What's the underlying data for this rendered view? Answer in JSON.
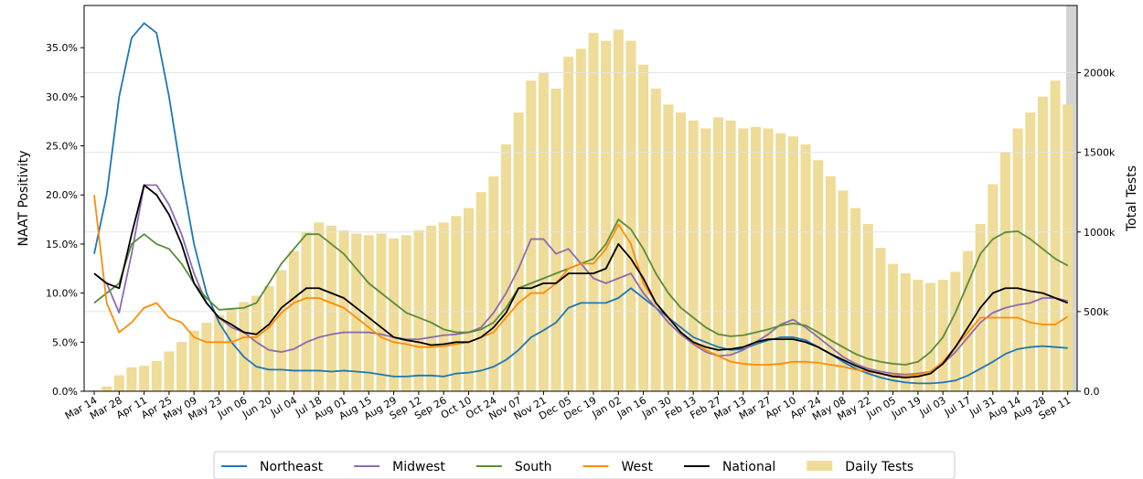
{
  "chart_data": {
    "type": "line",
    "categories": [
      "Mar 14",
      null,
      "Mar 28",
      null,
      "Apr 11",
      null,
      "Apr 25",
      null,
      "May 09",
      null,
      "May 23",
      null,
      "Jun 06",
      null,
      "Jun 20",
      null,
      "Jul 04",
      null,
      "Jul 18",
      null,
      "Aug 01",
      null,
      "Aug 15",
      null,
      "Aug 29",
      null,
      "Sep 12",
      null,
      "Sep 26",
      null,
      "Oct 10",
      null,
      "Oct 24",
      null,
      "Nov 07",
      null,
      "Nov 21",
      null,
      "Dec 05",
      null,
      "Dec 19",
      null,
      "Jan 02",
      null,
      "Jan 16",
      null,
      "Jan 30",
      null,
      "Feb 13",
      null,
      "Feb 27",
      null,
      "Mar 13",
      null,
      "Mar 27",
      null,
      "Apr 10",
      null,
      "Apr 24",
      null,
      "May 08",
      null,
      "May 22",
      null,
      "Jun 05",
      null,
      "Jun 19",
      null,
      "Jul 03",
      null,
      "Jul 17",
      null,
      "Jul 31",
      null,
      "Aug 14",
      null,
      "Aug 28",
      null,
      "Sep 11"
    ],
    "ylabel": "NAAT Positivity",
    "y2label": "Total Tests",
    "ylim": [
      0,
      39.3
    ],
    "yticks": [
      {
        "value": 0,
        "label": "0.0%"
      },
      {
        "value": 5,
        "label": "5.0%"
      },
      {
        "value": 10,
        "label": "10.0%"
      },
      {
        "value": 15,
        "label": "15.0%"
      },
      {
        "value": 20,
        "label": "20.0%"
      },
      {
        "value": 25,
        "label": "25.0%"
      },
      {
        "value": 30,
        "label": "30.0%"
      },
      {
        "value": 35,
        "label": "35.0%"
      }
    ],
    "y2lim": [
      0,
      2422000
    ],
    "y2ticks": [
      {
        "value": 0,
        "label": "0.0"
      },
      {
        "value": 500000,
        "label": "500k"
      },
      {
        "value": 1000000,
        "label": "1000k"
      },
      {
        "value": 1500000,
        "label": "1500k"
      },
      {
        "value": 2000000,
        "label": "2000k"
      }
    ],
    "grid": "y2",
    "legend": "bottom",
    "series": [
      {
        "name": "Daily Tests",
        "type": "bar",
        "axis": "y2",
        "color": "#eedc98",
        "values": [
          5000,
          30000,
          100000,
          150000,
          160000,
          190000,
          250000,
          310000,
          380000,
          430000,
          480000,
          520000,
          560000,
          600000,
          660000,
          760000,
          880000,
          1000000,
          1060000,
          1040000,
          1010000,
          990000,
          980000,
          990000,
          960000,
          980000,
          1010000,
          1040000,
          1060000,
          1100000,
          1150000,
          1250000,
          1350000,
          1550000,
          1750000,
          1950000,
          2000000,
          1900000,
          2100000,
          2150000,
          2250000,
          2200000,
          2270000,
          2200000,
          2050000,
          1900000,
          1800000,
          1750000,
          1700000,
          1650000,
          1720000,
          1700000,
          1650000,
          1660000,
          1650000,
          1620000,
          1600000,
          1550000,
          1450000,
          1350000,
          1260000,
          1150000,
          1050000,
          900000,
          800000,
          740000,
          700000,
          680000,
          700000,
          750000,
          880000,
          1050000,
          1300000,
          1500000,
          1650000,
          1750000,
          1850000,
          1950000,
          1800000
        ]
      },
      {
        "name": "Northeast",
        "type": "line",
        "color": "#1f77b4",
        "values": [
          14,
          20,
          30,
          36,
          37.5,
          36.5,
          30,
          22,
          15,
          10,
          7,
          5,
          3.5,
          2.5,
          2.2,
          2.2,
          2.1,
          2.1,
          2.1,
          2.0,
          2.1,
          2.0,
          1.9,
          1.7,
          1.5,
          1.5,
          1.6,
          1.6,
          1.5,
          1.8,
          1.9,
          2.1,
          2.5,
          3.2,
          4.2,
          5.5,
          6.2,
          7,
          8.5,
          9,
          9,
          9,
          9.5,
          10.5,
          9.5,
          8.5,
          7.5,
          6.5,
          5.5,
          5,
          4.5,
          4.2,
          4.3,
          4.8,
          5.2,
          5.5,
          5.5,
          5.2,
          4.5,
          3.8,
          3,
          2.3,
          1.8,
          1.4,
          1.1,
          0.9,
          0.8,
          0.8,
          0.9,
          1.1,
          1.6,
          2.3,
          3,
          3.8,
          4.3,
          4.5,
          4.6,
          4.5,
          4.4
        ]
      },
      {
        "name": "Midwest",
        "type": "line",
        "color": "#8e6bb0",
        "values": [
          12,
          11,
          8,
          14,
          21,
          21,
          19,
          16,
          12,
          9,
          7.5,
          6.5,
          6,
          5,
          4.2,
          4,
          4.3,
          5,
          5.5,
          5.8,
          6,
          6,
          6,
          5.8,
          5.5,
          5.3,
          5.3,
          5.5,
          5.7,
          5.8,
          6,
          6.5,
          8,
          10,
          12.5,
          15.5,
          15.5,
          14,
          14.5,
          13,
          11.5,
          11,
          11.5,
          12,
          10,
          8.5,
          7,
          5.8,
          4.8,
          4,
          3.6,
          3.7,
          4.2,
          5,
          5.8,
          6.8,
          7.3,
          6.5,
          5.5,
          4.5,
          3.5,
          2.8,
          2.3,
          2,
          1.8,
          1.7,
          1.8,
          2,
          2.8,
          4,
          5.5,
          7,
          8,
          8.5,
          8.8,
          9,
          9.5,
          9.5,
          9.2
        ]
      },
      {
        "name": "South",
        "type": "line",
        "color": "#5b8c3a",
        "values": [
          9,
          10,
          11,
          15,
          16,
          15,
          14.5,
          13,
          11,
          9.5,
          8.3,
          8.4,
          8.5,
          9,
          11,
          13,
          14.5,
          16,
          16,
          15,
          14,
          12.5,
          11,
          10,
          9,
          8,
          7.5,
          7,
          6.3,
          6,
          6,
          6.3,
          7,
          8.5,
          10.5,
          11,
          11.5,
          12,
          12.5,
          13,
          13.5,
          15,
          17.5,
          16.5,
          14.5,
          12,
          10,
          8.5,
          7.5,
          6.5,
          5.8,
          5.6,
          5.7,
          6,
          6.3,
          6.7,
          6.9,
          6.7,
          6,
          5.2,
          4.5,
          3.8,
          3.3,
          3,
          2.8,
          2.7,
          3,
          4,
          5.5,
          8,
          11,
          14,
          15.5,
          16.2,
          16.3,
          15.5,
          14.5,
          13.5,
          12.8
        ]
      },
      {
        "name": "West",
        "type": "line",
        "color": "#ff8c0a",
        "values": [
          20,
          9,
          6,
          7,
          8.5,
          9,
          7.5,
          7,
          5.5,
          5,
          5,
          5,
          5.5,
          5.5,
          6.5,
          8,
          9,
          9.5,
          9.5,
          9,
          8.5,
          7.5,
          6.5,
          5.5,
          5,
          4.8,
          4.5,
          4.5,
          4.6,
          4.8,
          5,
          5.5,
          6,
          7.5,
          9,
          10,
          10,
          11,
          12.5,
          13,
          13,
          14.5,
          17,
          15,
          11,
          9,
          7.5,
          6,
          5,
          4.2,
          3.6,
          3.0,
          2.8,
          2.7,
          2.7,
          2.8,
          3,
          3,
          2.9,
          2.7,
          2.5,
          2.2,
          2,
          1.8,
          1.6,
          1.6,
          1.7,
          2,
          3,
          4.5,
          6,
          7.5,
          7.5,
          7.5,
          7.5,
          7,
          6.8,
          6.8,
          7.6
        ]
      },
      {
        "name": "National",
        "type": "line",
        "color": "#000000",
        "values": [
          12,
          11,
          10.5,
          16,
          21,
          20,
          18,
          15,
          11,
          9,
          7.5,
          6.8,
          6,
          5.8,
          6.8,
          8.5,
          9.5,
          10.5,
          10.5,
          10,
          9.5,
          8.5,
          7.5,
          6.5,
          5.5,
          5.2,
          5,
          4.7,
          4.8,
          5,
          5,
          5.5,
          6.5,
          8,
          10.5,
          10.5,
          11,
          11,
          12,
          12,
          12,
          12.5,
          15,
          13.5,
          11.5,
          9,
          7.5,
          6,
          5,
          4.5,
          4.2,
          4.3,
          4.5,
          5,
          5.3,
          5.3,
          5.3,
          5,
          4.5,
          3.8,
          3.2,
          2.6,
          2.1,
          1.8,
          1.5,
          1.4,
          1.5,
          1.8,
          2.8,
          4.5,
          6.5,
          8.5,
          10,
          10.5,
          10.5,
          10.2,
          10,
          9.5,
          9
        ]
      }
    ]
  }
}
